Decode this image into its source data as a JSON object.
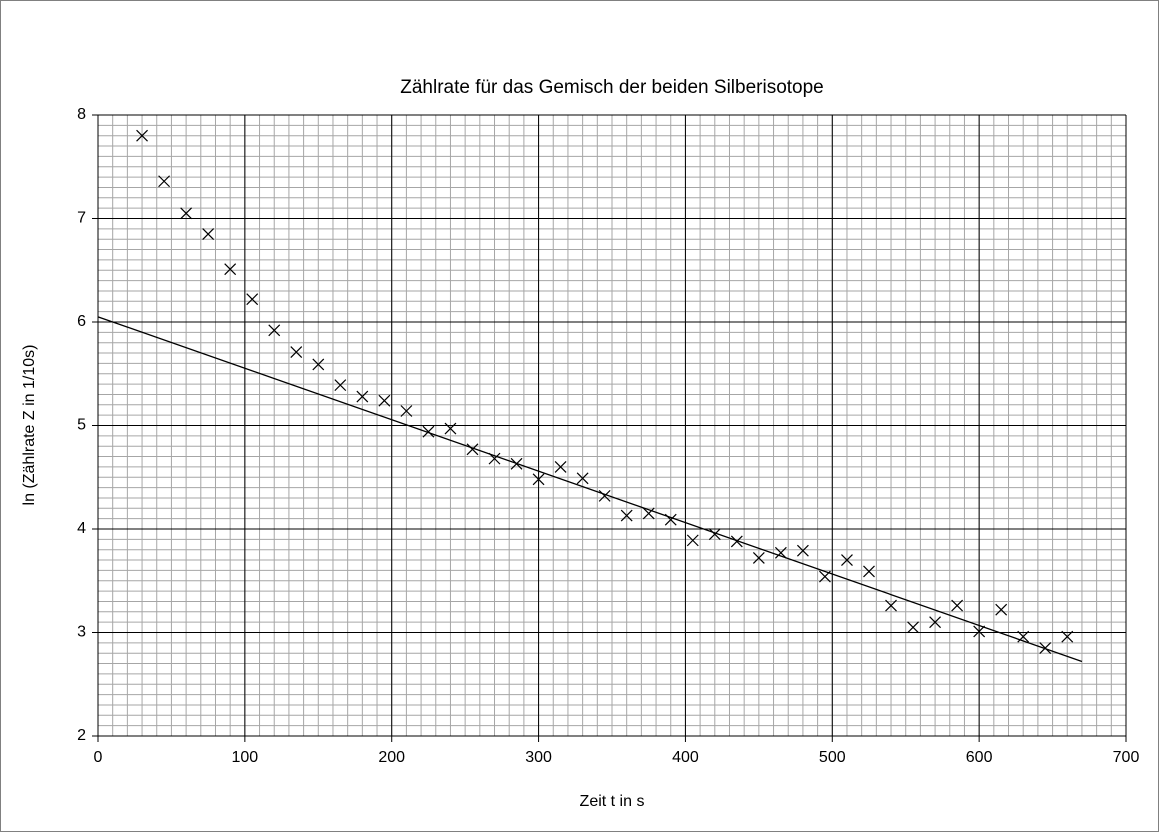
{
  "chart_data": {
    "type": "scatter",
    "title": "Zählrate für das Gemisch der beiden Silberisotope",
    "x_label": "Zeit t in s",
    "y_label": "ln (Zählrate Z in 1/10s)",
    "xlim": [
      0,
      700
    ],
    "xticks": [
      0,
      100,
      200,
      300,
      400,
      500,
      600,
      700
    ],
    "ylim": [
      2,
      8
    ],
    "yticks": [
      2,
      3,
      4,
      5,
      6,
      7,
      8
    ],
    "grid": true,
    "minor_grid": {
      "x": 10,
      "y": 0.1
    },
    "series": [
      {
        "type": "scatter",
        "marker": "x",
        "color": "#000000",
        "x": [
          30,
          45,
          60,
          75,
          90,
          105,
          120,
          135,
          150,
          165,
          180,
          195,
          210,
          225,
          240,
          255,
          270,
          285,
          300,
          315,
          330,
          345,
          360,
          375,
          390,
          405,
          420,
          435,
          450,
          465,
          480,
          495,
          510,
          525,
          540,
          555,
          570,
          585,
          600,
          615,
          630,
          645,
          660
        ],
        "values": [
          7.8,
          7.36,
          7.05,
          6.85,
          6.51,
          6.22,
          5.92,
          5.71,
          5.59,
          5.39,
          5.28,
          5.24,
          5.14,
          4.94,
          4.97,
          4.77,
          4.68,
          4.63,
          4.48,
          4.6,
          4.49,
          4.32,
          4.13,
          4.15,
          4.09,
          3.89,
          3.95,
          3.88,
          3.72,
          3.77,
          3.79,
          3.54,
          3.7,
          3.59,
          3.26,
          3.05,
          3.1,
          3.26,
          3.01,
          3.22,
          2.96,
          2.85,
          2.96
        ]
      },
      {
        "type": "line",
        "color": "#000000",
        "x": [
          0,
          670
        ],
        "values": [
          6.05,
          2.72
        ]
      }
    ]
  }
}
